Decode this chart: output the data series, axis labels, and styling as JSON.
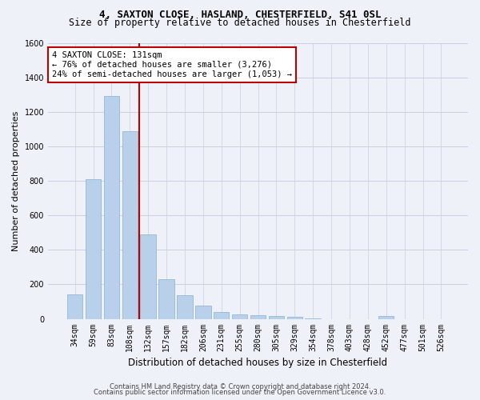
{
  "title1": "4, SAXTON CLOSE, HASLAND, CHESTERFIELD, S41 0SL",
  "title2": "Size of property relative to detached houses in Chesterfield",
  "xlabel": "Distribution of detached houses by size in Chesterfield",
  "ylabel": "Number of detached properties",
  "categories": [
    "34sqm",
    "59sqm",
    "83sqm",
    "108sqm",
    "132sqm",
    "157sqm",
    "182sqm",
    "206sqm",
    "231sqm",
    "255sqm",
    "280sqm",
    "305sqm",
    "329sqm",
    "354sqm",
    "378sqm",
    "403sqm",
    "428sqm",
    "452sqm",
    "477sqm",
    "501sqm",
    "526sqm"
  ],
  "values": [
    140,
    810,
    1295,
    1090,
    490,
    232,
    135,
    75,
    42,
    25,
    20,
    15,
    10,
    2,
    0,
    0,
    0,
    18,
    0,
    0,
    0
  ],
  "bar_color": "#b8d0ea",
  "bar_edge_color": "#8ab0d0",
  "vline_x_index": 4,
  "annotation_title": "4 SAXTON CLOSE: 131sqm",
  "annotation_line1": "← 76% of detached houses are smaller (3,276)",
  "annotation_line2": "24% of semi-detached houses are larger (1,053) →",
  "ylim": [
    0,
    1600
  ],
  "yticks": [
    0,
    200,
    400,
    600,
    800,
    1000,
    1200,
    1400,
    1600
  ],
  "footer1": "Contains HM Land Registry data © Crown copyright and database right 2024.",
  "footer2": "Contains public sector information licensed under the Open Government Licence v3.0.",
  "bg_color": "#eef2f8",
  "grid_color": "#c8d0de",
  "annotation_box_facecolor": "#ffffff",
  "annotation_box_edgecolor": "#bb0000",
  "vline_color": "#bb0000",
  "title_fontsize": 9,
  "subtitle_fontsize": 8.5,
  "ylabel_fontsize": 8,
  "xlabel_fontsize": 8.5,
  "tick_fontsize": 7,
  "footer_fontsize": 6,
  "ann_fontsize": 7.5
}
